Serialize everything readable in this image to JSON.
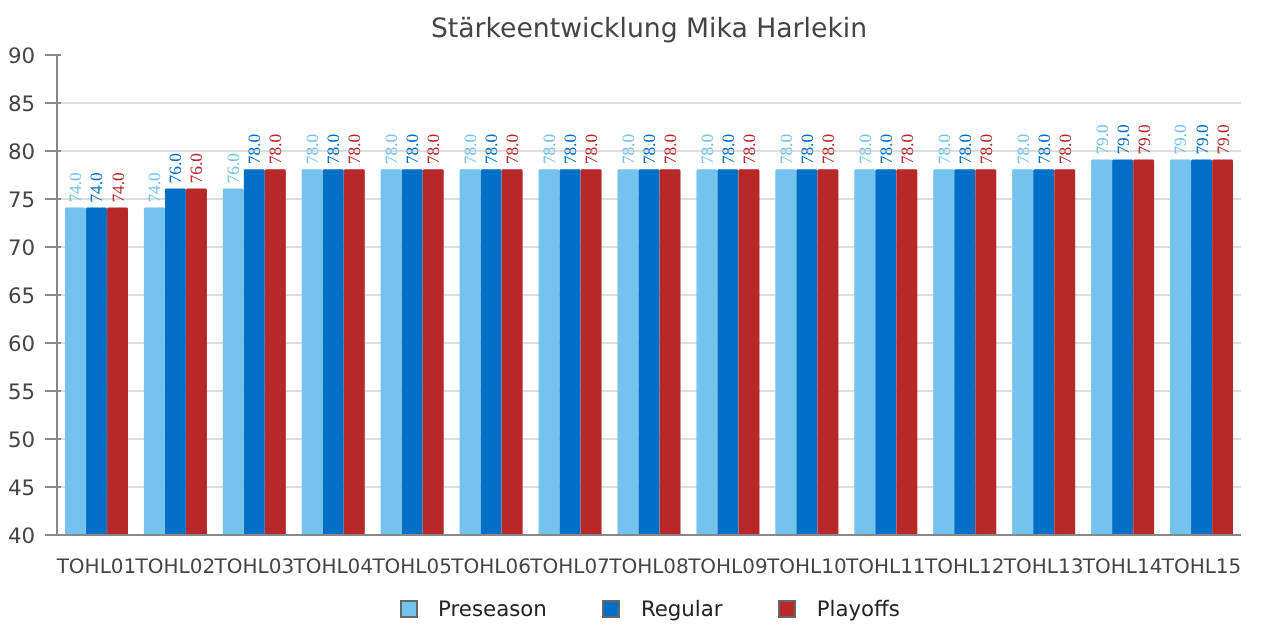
{
  "chart_data": {
    "type": "bar",
    "title": "Stärkeentwicklung Mika Harlekin",
    "categories": [
      "TOHL01",
      "TOHL02",
      "TOHL03",
      "TOHL04",
      "TOHL05",
      "TOHL06",
      "TOHL07",
      "TOHL08",
      "TOHL09",
      "TOHL10",
      "TOHL11",
      "TOHL12",
      "TOHL13",
      "TOHL14",
      "TOHL15"
    ],
    "series": [
      {
        "name": "Preseason",
        "color": "#74c3ee",
        "values": [
          74,
          74,
          76,
          78,
          78,
          78,
          78,
          78,
          78,
          78,
          78,
          78,
          78,
          79,
          79
        ],
        "value_labels": [
          "74.0",
          "74.0",
          "76.0",
          "78.0",
          "78.0",
          "78.0",
          "78.0",
          "78.0",
          "78.0",
          "78.0",
          "78.0",
          "78.0",
          "78.0",
          "79.0",
          "79.0"
        ]
      },
      {
        "name": "Regular",
        "color": "#006fc6",
        "values": [
          74,
          76,
          78,
          78,
          78,
          78,
          78,
          78,
          78,
          78,
          78,
          78,
          78,
          79,
          79
        ],
        "value_labels": [
          "74.0",
          "76.0",
          "78.0",
          "78.0",
          "78.0",
          "78.0",
          "78.0",
          "78.0",
          "78.0",
          "78.0",
          "78.0",
          "78.0",
          "78.0",
          "79.0",
          "79.0"
        ]
      },
      {
        "name": "Playoffs",
        "color": "#b72828",
        "values": [
          74,
          76,
          78,
          78,
          78,
          78,
          78,
          78,
          78,
          78,
          78,
          78,
          78,
          79,
          79
        ],
        "value_labels": [
          "74.0",
          "76.0",
          "78.0",
          "78.0",
          "78.0",
          "78.0",
          "78.0",
          "78.0",
          "78.0",
          "78.0",
          "78.0",
          "78.0",
          "78.0",
          "79.0",
          "79.0"
        ]
      }
    ],
    "ylim": [
      40,
      90
    ],
    "yticks": [
      40,
      45,
      50,
      55,
      60,
      65,
      70,
      75,
      80,
      85,
      90
    ],
    "grid": "y",
    "legend": "bottom"
  }
}
